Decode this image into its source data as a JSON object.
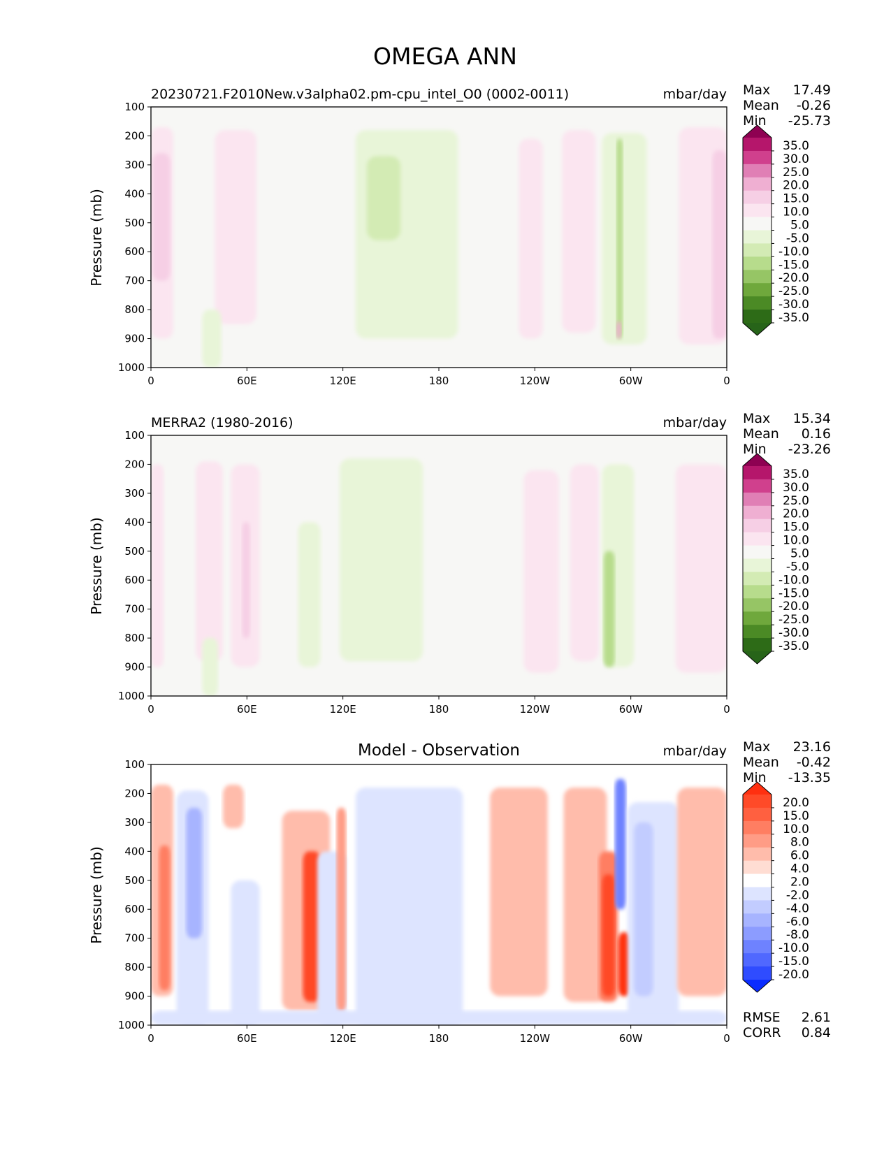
{
  "figure_title": "OMEGA ANN",
  "colors": {
    "background": "#f7f7f5",
    "frame": "#000000"
  },
  "chart_data": [
    {
      "type": "heatmap",
      "id": "model",
      "title": "20230721.F2010New.v3alpha02.pm-cpu_intel_O0 (0002-0011)",
      "title_align": "left",
      "units": "mbar/day",
      "ylabel": "Pressure (mb)",
      "xlabel": "",
      "xticks": [
        "0",
        "60E",
        "120E",
        "180",
        "120W",
        "60W",
        "0"
      ],
      "x_range": [
        0,
        360
      ],
      "yticks": [
        "100",
        "200",
        "300",
        "400",
        "500",
        "600",
        "700",
        "800",
        "900",
        "1000"
      ],
      "y_range": [
        100,
        1000
      ],
      "stats": [
        {
          "label": "Max",
          "value": "17.49"
        },
        {
          "label": "Mean",
          "value": "-0.26"
        },
        {
          "label": "Min",
          "value": "-25.73"
        }
      ],
      "colorbar": {
        "levels": [
          "35.0",
          "30.0",
          "25.0",
          "20.0",
          "15.0",
          "10.0",
          "5.0",
          "-5.0",
          "-10.0",
          "-15.0",
          "-20.0",
          "-25.0",
          "-30.0",
          "-35.0"
        ],
        "colors": [
          "#8e0152",
          "#b5166b",
          "#d0408d",
          "#e07fb5",
          "#efafd2",
          "#f6cfe5",
          "#fbe5f0",
          "#f7f7f5",
          "#e8f5d8",
          "#d3ebb4",
          "#b7dc8c",
          "#96c565",
          "#6fa83c",
          "#4b8a25",
          "#2d6b17",
          "#276419"
        ],
        "extend": "both"
      },
      "features": [
        {
          "lon": [
            0,
            14
          ],
          "p": [
            170,
            900
          ],
          "v": 8
        },
        {
          "lon": [
            1,
            12
          ],
          "p": [
            260,
            700
          ],
          "v": 14
        },
        {
          "lon": [
            40,
            66
          ],
          "p": [
            180,
            850
          ],
          "v": 6
        },
        {
          "lon": [
            128,
            192
          ],
          "p": [
            180,
            900
          ],
          "v": -6
        },
        {
          "lon": [
            135,
            156
          ],
          "p": [
            270,
            560
          ],
          "v": -12
        },
        {
          "lon": [
            230,
            245
          ],
          "p": [
            210,
            900
          ],
          "v": 6
        },
        {
          "lon": [
            257,
            278
          ],
          "p": [
            180,
            880
          ],
          "v": 6
        },
        {
          "lon": [
            282,
            310
          ],
          "p": [
            190,
            920
          ],
          "v": -6
        },
        {
          "lon": [
            291,
            295
          ],
          "p": [
            210,
            900
          ],
          "v": -18
        },
        {
          "lon": [
            291,
            294
          ],
          "p": [
            840,
            900
          ],
          "v": 16
        },
        {
          "lon": [
            330,
            360
          ],
          "p": [
            170,
            920
          ],
          "v": 6
        },
        {
          "lon": [
            351,
            360
          ],
          "p": [
            250,
            900
          ],
          "v": 12
        },
        {
          "lon": [
            32,
            44
          ],
          "p": [
            800,
            1000
          ],
          "v": -6
        }
      ]
    },
    {
      "type": "heatmap",
      "id": "obs",
      "title": "MERRA2 (1980-2016)",
      "title_align": "left",
      "units": "mbar/day",
      "ylabel": "Pressure (mb)",
      "xlabel": "",
      "xticks": [
        "0",
        "60E",
        "120E",
        "180",
        "120W",
        "60W",
        "0"
      ],
      "x_range": [
        0,
        360
      ],
      "yticks": [
        "100",
        "200",
        "300",
        "400",
        "500",
        "600",
        "700",
        "800",
        "900",
        "1000"
      ],
      "y_range": [
        100,
        1000
      ],
      "stats": [
        {
          "label": "Max",
          "value": "15.34"
        },
        {
          "label": "Mean",
          "value": "0.16"
        },
        {
          "label": "Min",
          "value": "-23.26"
        }
      ],
      "colorbar": {
        "levels": [
          "35.0",
          "30.0",
          "25.0",
          "20.0",
          "15.0",
          "10.0",
          "5.0",
          "-5.0",
          "-10.0",
          "-15.0",
          "-20.0",
          "-25.0",
          "-30.0",
          "-35.0"
        ],
        "colors": [
          "#8e0152",
          "#b5166b",
          "#d0408d",
          "#e07fb5",
          "#efafd2",
          "#f6cfe5",
          "#fbe5f0",
          "#f7f7f5",
          "#e8f5d8",
          "#d3ebb4",
          "#b7dc8c",
          "#96c565",
          "#6fa83c",
          "#4b8a25",
          "#2d6b17",
          "#276419"
        ],
        "extend": "both"
      },
      "features": [
        {
          "lon": [
            0,
            8
          ],
          "p": [
            200,
            900
          ],
          "v": 7
        },
        {
          "lon": [
            28,
            45
          ],
          "p": [
            190,
            880
          ],
          "v": 6
        },
        {
          "lon": [
            50,
            68
          ],
          "p": [
            200,
            900
          ],
          "v": 8
        },
        {
          "lon": [
            57,
            62
          ],
          "p": [
            400,
            800
          ],
          "v": 12
        },
        {
          "lon": [
            92,
            106
          ],
          "p": [
            400,
            900
          ],
          "v": -7
        },
        {
          "lon": [
            118,
            170
          ],
          "p": [
            180,
            880
          ],
          "v": -6
        },
        {
          "lon": [
            233,
            255
          ],
          "p": [
            220,
            920
          ],
          "v": 6
        },
        {
          "lon": [
            262,
            280
          ],
          "p": [
            200,
            880
          ],
          "v": 6
        },
        {
          "lon": [
            282,
            302
          ],
          "p": [
            200,
            900
          ],
          "v": -8
        },
        {
          "lon": [
            283,
            290
          ],
          "p": [
            500,
            900
          ],
          "v": -18
        },
        {
          "lon": [
            328,
            360
          ],
          "p": [
            200,
            920
          ],
          "v": 6
        },
        {
          "lon": [
            32,
            42
          ],
          "p": [
            800,
            1000
          ],
          "v": -10
        }
      ]
    },
    {
      "type": "heatmap",
      "id": "diff",
      "title": "Model - Observation",
      "title_align": "center",
      "units": "mbar/day",
      "ylabel": "Pressure (mb)",
      "xlabel": "",
      "xticks": [
        "0",
        "60E",
        "120E",
        "180",
        "120W",
        "60W",
        "0"
      ],
      "x_range": [
        0,
        360
      ],
      "yticks": [
        "100",
        "200",
        "300",
        "400",
        "500",
        "600",
        "700",
        "800",
        "900",
        "1000"
      ],
      "y_range": [
        100,
        1000
      ],
      "stats": [
        {
          "label": "Max",
          "value": "23.16"
        },
        {
          "label": "Mean",
          "value": "-0.42"
        },
        {
          "label": "Min",
          "value": "-13.35"
        }
      ],
      "bottom_stats": [
        {
          "label": "RMSE",
          "value": "2.61"
        },
        {
          "label": "CORR",
          "value": "0.84"
        }
      ],
      "colorbar": {
        "levels": [
          "20.0",
          "15.0",
          "10.0",
          "8.0",
          "6.0",
          "4.0",
          "2.0",
          "-2.0",
          "-4.0",
          "-6.0",
          "-8.0",
          "-10.0",
          "-15.0",
          "-20.0"
        ],
        "colors": [
          "#ff3010",
          "#ff4a28",
          "#ff6040",
          "#ff7e62",
          "#ff9c86",
          "#ffbcab",
          "#ffddd3",
          "#ffffff",
          "#dde4ff",
          "#c2ccff",
          "#a7b4ff",
          "#8c9cff",
          "#6e82ff",
          "#5068ff",
          "#2f4cff",
          "#0a2cff"
        ],
        "extend": "both"
      },
      "features": [
        {
          "lon": [
            0,
            14
          ],
          "p": [
            170,
            900
          ],
          "v": 5
        },
        {
          "lon": [
            5,
            12
          ],
          "p": [
            380,
            880
          ],
          "v": 9
        },
        {
          "lon": [
            16,
            36
          ],
          "p": [
            190,
            1000
          ],
          "v": -4
        },
        {
          "lon": [
            22,
            32
          ],
          "p": [
            250,
            700
          ],
          "v": -7
        },
        {
          "lon": [
            45,
            58
          ],
          "p": [
            170,
            320
          ],
          "v": 4
        },
        {
          "lon": [
            50,
            68
          ],
          "p": [
            500,
            1000
          ],
          "v": -4
        },
        {
          "lon": [
            82,
            112
          ],
          "p": [
            260,
            950
          ],
          "v": 5
        },
        {
          "lon": [
            95,
            106
          ],
          "p": [
            400,
            920
          ],
          "v": 16
        },
        {
          "lon": [
            104,
            122
          ],
          "p": [
            400,
            1000
          ],
          "v": -4
        },
        {
          "lon": [
            116,
            122
          ],
          "p": [
            250,
            950
          ],
          "v": 7
        },
        {
          "lon": [
            128,
            195
          ],
          "p": [
            180,
            1000
          ],
          "v": -3
        },
        {
          "lon": [
            212,
            248
          ],
          "p": [
            180,
            900
          ],
          "v": 4
        },
        {
          "lon": [
            258,
            285
          ],
          "p": [
            180,
            920
          ],
          "v": 4
        },
        {
          "lon": [
            280,
            292
          ],
          "p": [
            400,
            920
          ],
          "v": 9
        },
        {
          "lon": [
            282,
            290
          ],
          "p": [
            480,
            900
          ],
          "v": 17
        },
        {
          "lon": [
            290,
            297
          ],
          "p": [
            150,
            600
          ],
          "v": -12
        },
        {
          "lon": [
            292,
            300
          ],
          "p": [
            680,
            900
          ],
          "v": 21
        },
        {
          "lon": [
            298,
            330
          ],
          "p": [
            230,
            1000
          ],
          "v": -4
        },
        {
          "lon": [
            302,
            314
          ],
          "p": [
            300,
            900
          ],
          "v": -6
        },
        {
          "lon": [
            329,
            360
          ],
          "p": [
            180,
            900
          ],
          "v": 4
        },
        {
          "lon": [
            0,
            360
          ],
          "p": [
            950,
            1000
          ],
          "v": -3
        }
      ]
    }
  ]
}
